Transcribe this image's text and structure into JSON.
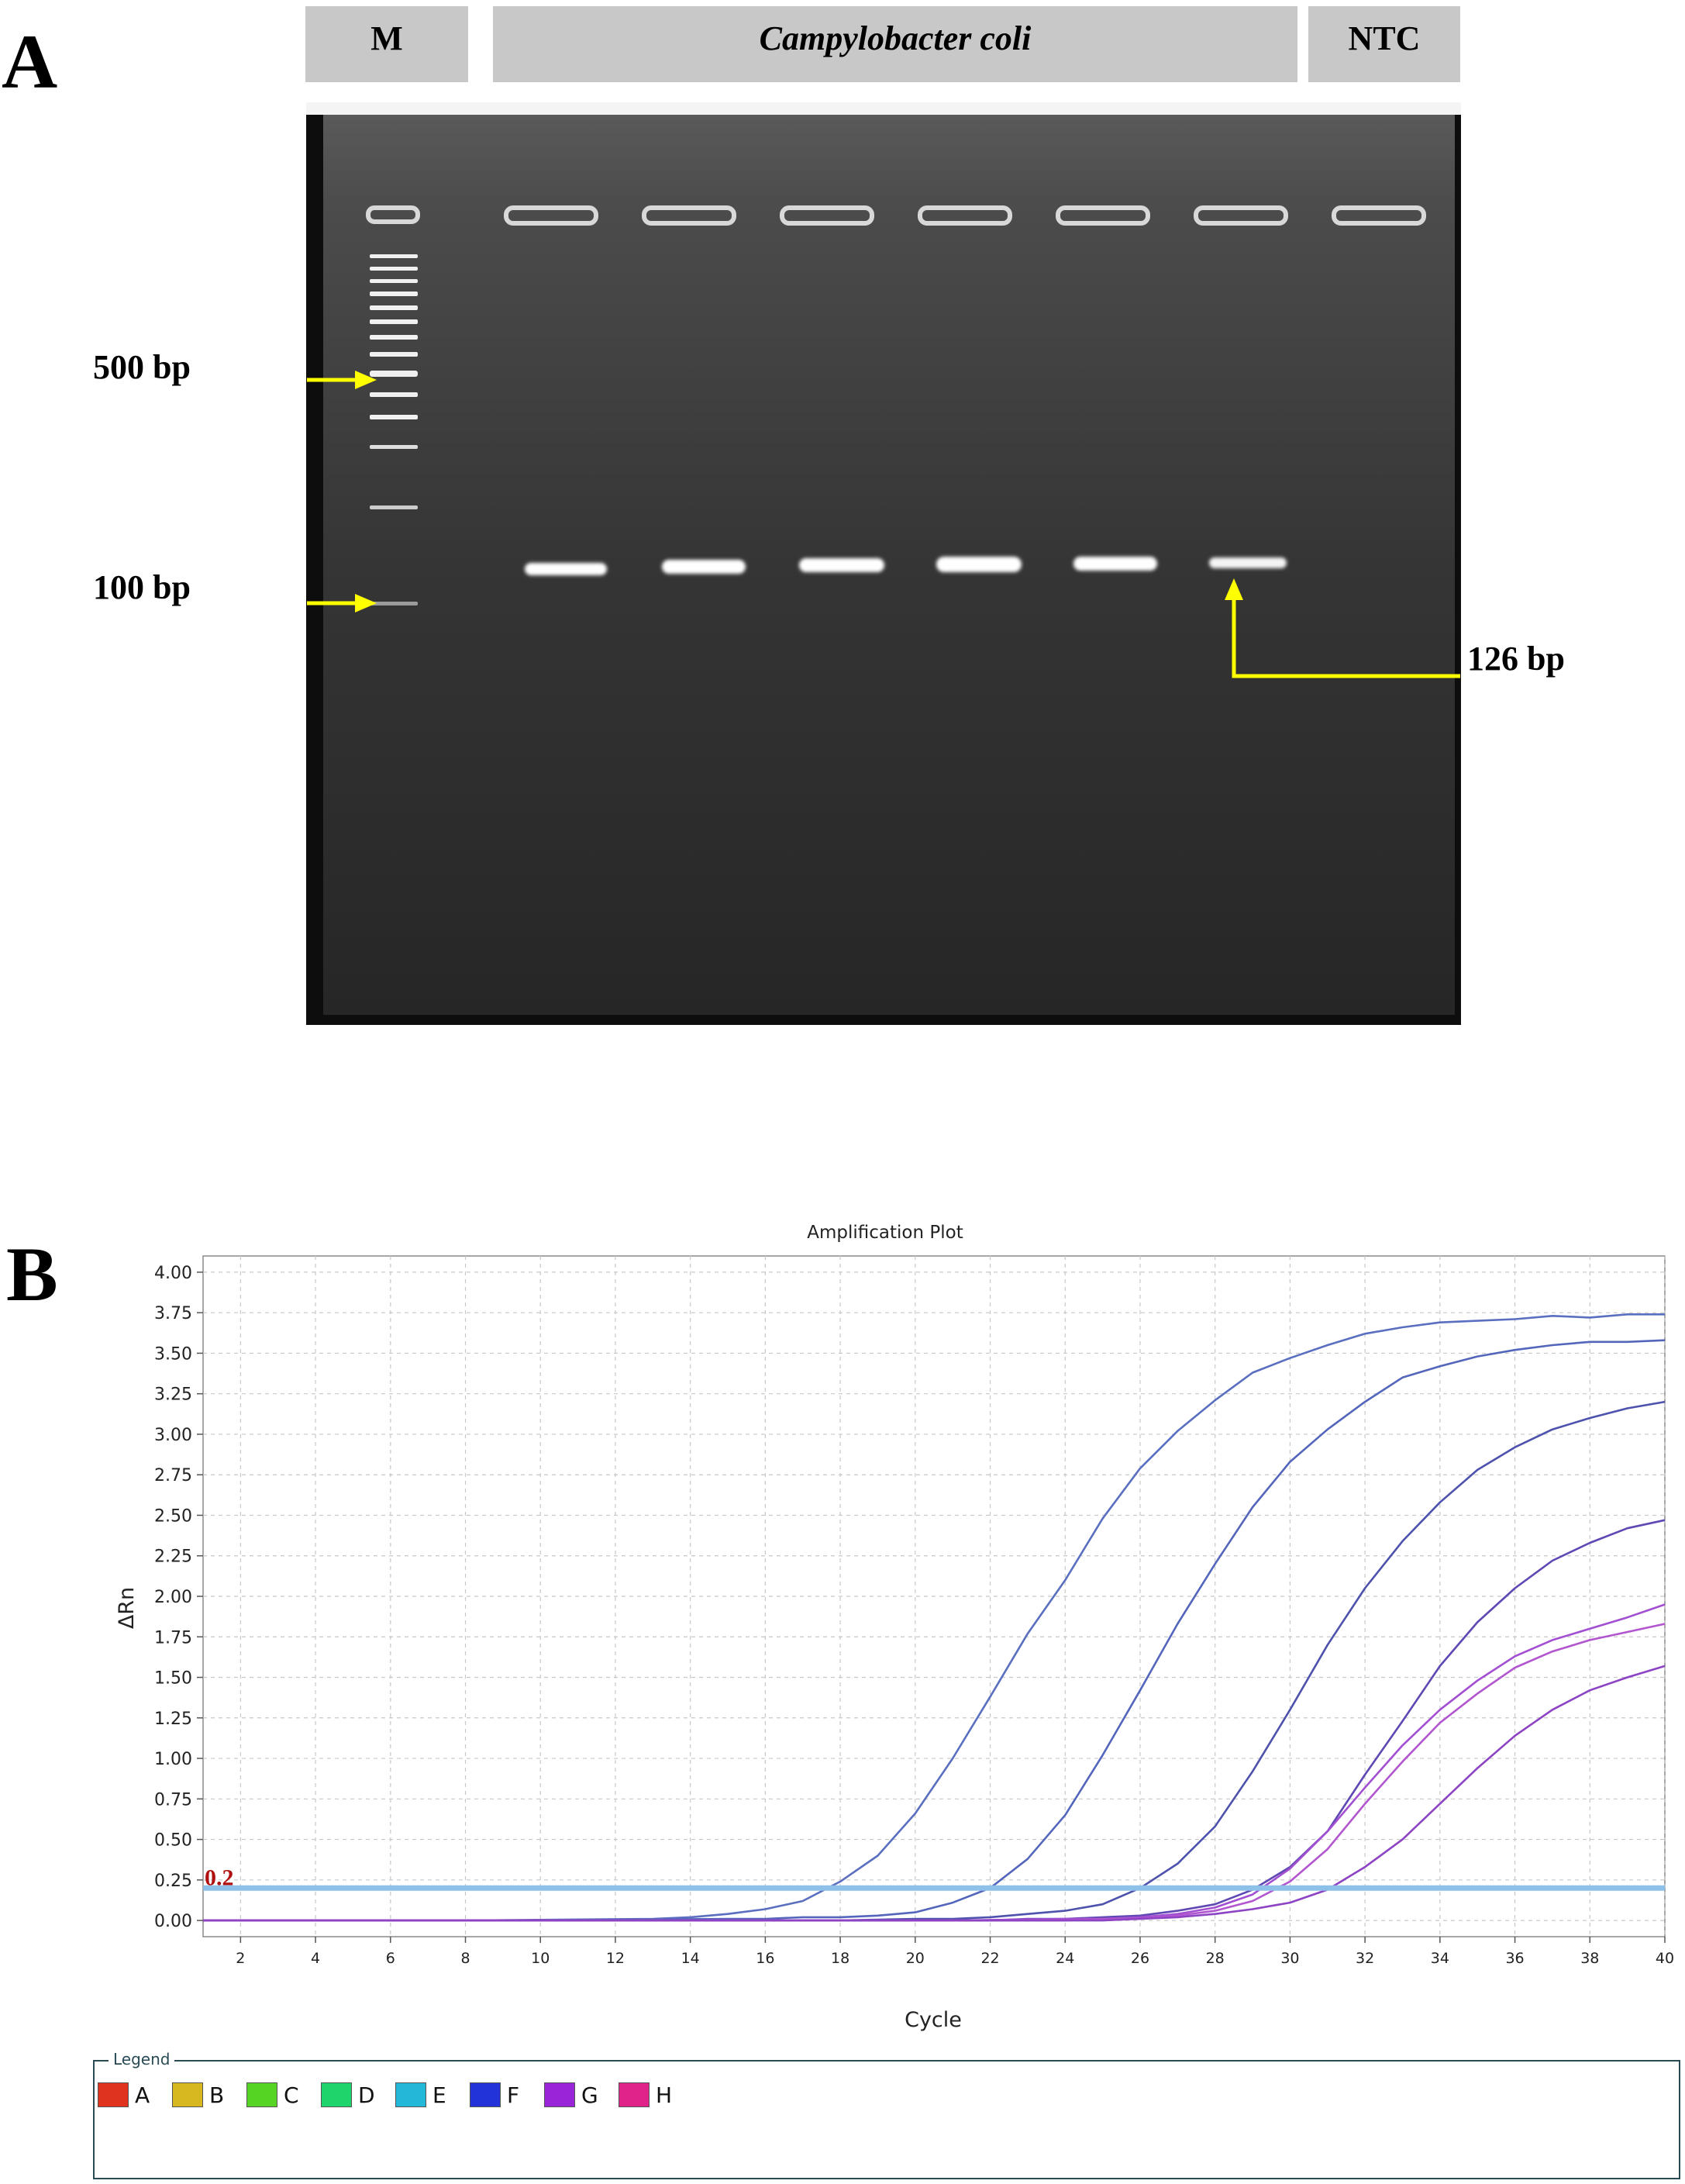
{
  "panel_a": {
    "letter": "A",
    "lane_headers": {
      "marker": "M",
      "sample": "Campylobacter coli",
      "ntc": "NTC"
    },
    "marker_labels": {
      "upper": "500 bp",
      "lower": "100 bp"
    },
    "product_label": "126 bp"
  },
  "panel_b": {
    "letter": "B",
    "legend_title": "Legend",
    "legend_items": [
      {
        "label": "A",
        "color": "#e0331f"
      },
      {
        "label": "B",
        "color": "#d8b820"
      },
      {
        "label": "C",
        "color": "#55d424"
      },
      {
        "label": "D",
        "color": "#1fd46a"
      },
      {
        "label": "E",
        "color": "#24b8d8"
      },
      {
        "label": "F",
        "color": "#2233d8"
      },
      {
        "label": "G",
        "color": "#9a24d8"
      },
      {
        "label": "H",
        "color": "#e0238a"
      }
    ]
  },
  "chart_data": {
    "type": "line",
    "title": "Amplification Plot",
    "xlabel": "Cycle",
    "ylabel": "ΔRn",
    "xlim": [
      1,
      40
    ],
    "ylim": [
      -0.1,
      4.1
    ],
    "x_ticks": [
      2,
      4,
      6,
      8,
      10,
      12,
      14,
      16,
      18,
      20,
      22,
      24,
      26,
      28,
      30,
      32,
      34,
      36,
      38,
      40
    ],
    "y_ticks": [
      "0.00",
      "0.25",
      "0.50",
      "0.75",
      "1.00",
      "1.25",
      "1.50",
      "1.75",
      "2.00",
      "2.25",
      "2.50",
      "2.75",
      "3.00",
      "3.25",
      "3.50",
      "3.75",
      "4.00"
    ],
    "grid": true,
    "threshold": {
      "value": 0.2,
      "label": "0.2",
      "color": "#8ec1ea",
      "label_color": "#b01010"
    },
    "series": [
      {
        "color": "#5a6fc0",
        "x": [
          1,
          8,
          13,
          14,
          15,
          16,
          17,
          18,
          19,
          20,
          21,
          22,
          23,
          24,
          25,
          26,
          27,
          28,
          29,
          30,
          31,
          32,
          33,
          34,
          35,
          36,
          37,
          38,
          39,
          40
        ],
        "y": [
          0,
          0,
          0.01,
          0.02,
          0.04,
          0.07,
          0.12,
          0.24,
          0.4,
          0.66,
          1.0,
          1.38,
          1.77,
          2.1,
          2.48,
          2.79,
          3.02,
          3.21,
          3.38,
          3.47,
          3.55,
          3.62,
          3.66,
          3.69,
          3.7,
          3.71,
          3.73,
          3.72,
          3.74,
          3.74
        ]
      },
      {
        "color": "#5466bc",
        "x": [
          1,
          10,
          15,
          16,
          17,
          18,
          19,
          20,
          21,
          22,
          23,
          24,
          25,
          26,
          27,
          28,
          29,
          30,
          31,
          32,
          33,
          34,
          35,
          36,
          37,
          38,
          39,
          40
        ],
        "y": [
          0,
          0,
          0.01,
          0.01,
          0.02,
          0.02,
          0.03,
          0.05,
          0.11,
          0.2,
          0.38,
          0.65,
          1.02,
          1.42,
          1.83,
          2.2,
          2.55,
          2.83,
          3.03,
          3.2,
          3.35,
          3.42,
          3.48,
          3.52,
          3.55,
          3.57,
          3.57,
          3.58
        ]
      },
      {
        "color": "#4d52ad",
        "x": [
          1,
          18,
          20,
          21,
          22,
          23,
          24,
          25,
          26,
          27,
          28,
          29,
          30,
          31,
          32,
          33,
          34,
          35,
          36,
          37,
          38,
          39,
          40
        ],
        "y": [
          0,
          0,
          0.01,
          0.01,
          0.02,
          0.04,
          0.06,
          0.1,
          0.2,
          0.35,
          0.58,
          0.92,
          1.3,
          1.7,
          2.05,
          2.34,
          2.58,
          2.78,
          2.92,
          3.03,
          3.1,
          3.16,
          3.2
        ]
      },
      {
        "color": "#5f48b3",
        "x": [
          1,
          20,
          22,
          23,
          24,
          25,
          26,
          27,
          28,
          29,
          30,
          31,
          32,
          33,
          34,
          35,
          36,
          37,
          38,
          39,
          40
        ],
        "y": [
          0,
          0,
          0,
          0.01,
          0.01,
          0.02,
          0.03,
          0.06,
          0.1,
          0.19,
          0.33,
          0.55,
          0.9,
          1.23,
          1.57,
          1.84,
          2.05,
          2.22,
          2.33,
          2.42,
          2.47
        ]
      },
      {
        "color": "#a24fd2",
        "x": [
          1,
          21,
          24,
          25,
          26,
          27,
          28,
          29,
          30,
          31,
          32,
          33,
          34,
          35,
          36,
          37,
          38,
          39,
          40
        ],
        "y": [
          0,
          0,
          0.01,
          0.01,
          0.02,
          0.04,
          0.08,
          0.16,
          0.32,
          0.55,
          0.82,
          1.08,
          1.3,
          1.48,
          1.63,
          1.73,
          1.8,
          1.87,
          1.95
        ]
      },
      {
        "color": "#b256d0",
        "x": [
          1,
          21,
          24,
          25,
          26,
          27,
          28,
          29,
          30,
          31,
          32,
          33,
          34,
          35,
          36,
          37,
          38,
          39,
          40
        ],
        "y": [
          0,
          0,
          0,
          0.01,
          0.01,
          0.03,
          0.06,
          0.12,
          0.24,
          0.44,
          0.72,
          0.98,
          1.22,
          1.4,
          1.56,
          1.66,
          1.73,
          1.78,
          1.83
        ]
      },
      {
        "color": "#8d44c4",
        "x": [
          1,
          21,
          24,
          25,
          26,
          27,
          28,
          29,
          30,
          31,
          32,
          33,
          34,
          35,
          36,
          37,
          38,
          39,
          40
        ],
        "y": [
          0,
          0,
          0,
          0,
          0.01,
          0.02,
          0.04,
          0.07,
          0.11,
          0.19,
          0.33,
          0.5,
          0.72,
          0.94,
          1.14,
          1.3,
          1.42,
          1.5,
          1.57
        ]
      }
    ]
  }
}
